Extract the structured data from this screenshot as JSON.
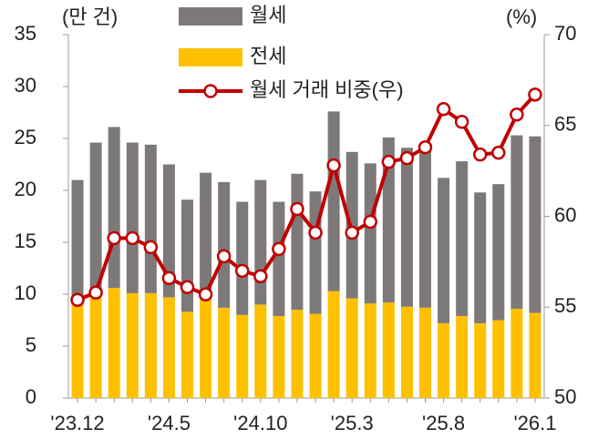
{
  "chart_data": {
    "type": "bar",
    "y_label": "(만 건)",
    "y2_label": "(%)",
    "categories": [
      "'23.12",
      null,
      null,
      null,
      null,
      "'24.5",
      null,
      null,
      null,
      null,
      "'24.10",
      null,
      null,
      null,
      null,
      "'25.3",
      null,
      null,
      null,
      null,
      "'25.8",
      null,
      null,
      null,
      null,
      "'26.1"
    ],
    "series": [
      {
        "name": "월세",
        "type": "bar",
        "stack": 1,
        "color": "#7e7979",
        "values": [
          11.5,
          14.7,
          15.5,
          14.5,
          14.3,
          12.8,
          10.8,
          12.2,
          12.1,
          10.9,
          12.0,
          11.0,
          13.1,
          11.8,
          17.3,
          14.1,
          13.5,
          15.9,
          15.3,
          15.4,
          14.0,
          14.9,
          12.6,
          13.1,
          16.7,
          17.0
        ]
      },
      {
        "name": "전세",
        "type": "bar",
        "stack": 0,
        "color": "#ffc000",
        "values": [
          9.5,
          9.9,
          10.6,
          10.1,
          10.1,
          9.7,
          8.3,
          9.5,
          8.7,
          8.0,
          9.0,
          7.9,
          8.5,
          8.1,
          10.3,
          9.6,
          9.1,
          9.2,
          8.8,
          8.7,
          7.2,
          7.9,
          7.2,
          7.5,
          8.6,
          8.2
        ]
      },
      {
        "name": "월세 거래 비중(우)",
        "type": "line",
        "axis": "y2",
        "color": "#c00000",
        "values": [
          55.4,
          55.8,
          58.8,
          58.8,
          58.3,
          56.6,
          56.1,
          55.7,
          57.8,
          57.0,
          56.7,
          58.2,
          60.4,
          59.1,
          62.8,
          59.1,
          59.7,
          63.0,
          63.2,
          63.8,
          65.9,
          65.2,
          63.4,
          63.5,
          65.6,
          66.7
        ]
      }
    ],
    "ylim": [
      0,
      35
    ],
    "yticks": [
      0,
      5,
      10,
      15,
      20,
      25,
      30,
      35
    ],
    "y2lim": [
      50,
      70
    ],
    "y2ticks": [
      50,
      55,
      60,
      65,
      70
    ],
    "grid": false,
    "legend": "top"
  }
}
